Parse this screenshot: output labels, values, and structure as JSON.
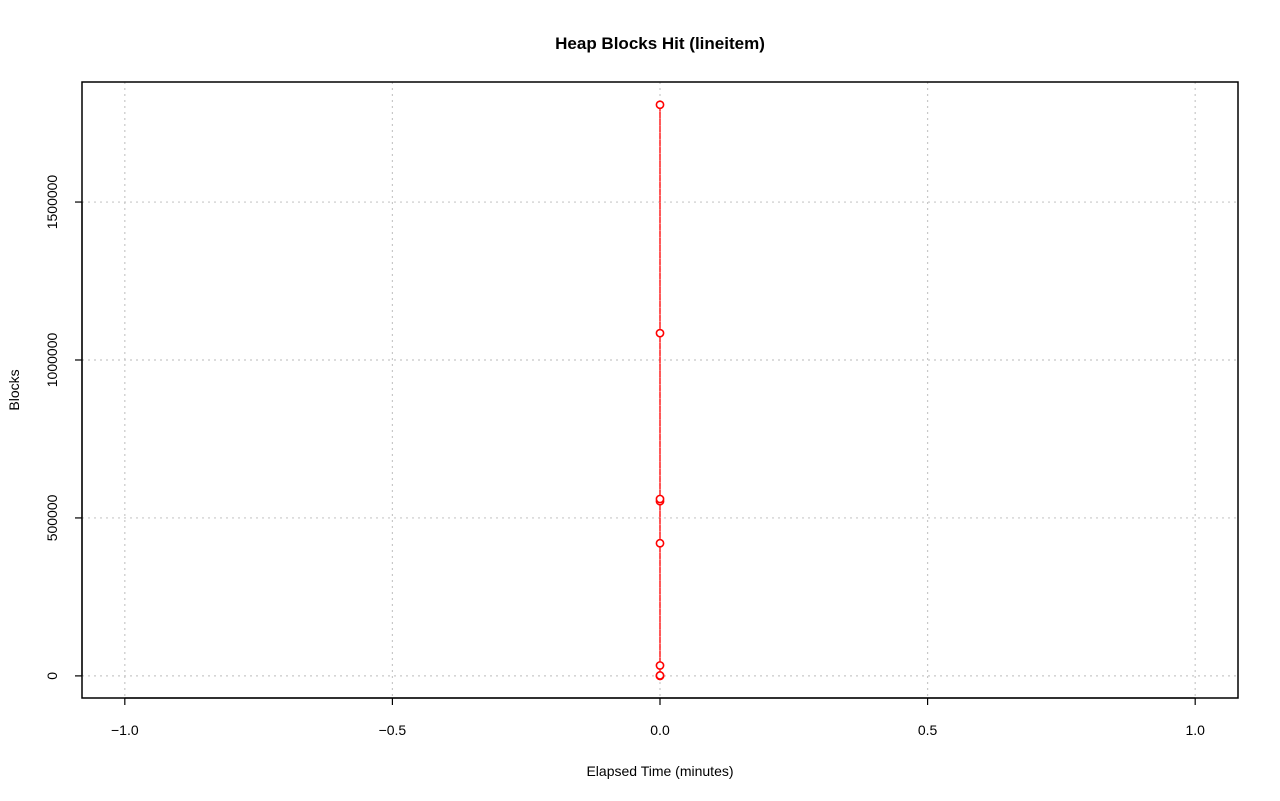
{
  "chart_data": {
    "type": "line",
    "title": "Heap Blocks Hit (lineitem)",
    "xlabel": "Elapsed Time (minutes)",
    "ylabel": "Blocks",
    "xlim": [
      -1.08,
      1.08
    ],
    "ylim": [
      -70000,
      1880000
    ],
    "xticks": [
      -1.0,
      -0.5,
      0.0,
      0.5,
      1.0
    ],
    "xtick_labels": [
      "−1.0",
      "−0.5",
      "0.0",
      "0.5",
      "1.0"
    ],
    "yticks": [
      0,
      500000,
      1000000,
      1500000
    ],
    "ytick_labels": [
      "0",
      "500000",
      "1000000",
      "1500000"
    ],
    "grid": true,
    "series": [
      {
        "color": "#ff0000",
        "line_style": "dashed",
        "marker": "open-circle",
        "x": [
          0,
          0,
          0,
          0,
          0,
          0,
          0,
          0,
          0
        ],
        "y": [
          0,
          200,
          33000,
          420000,
          553000,
          560000,
          1085000,
          1808000,
          1400
        ]
      }
    ]
  }
}
